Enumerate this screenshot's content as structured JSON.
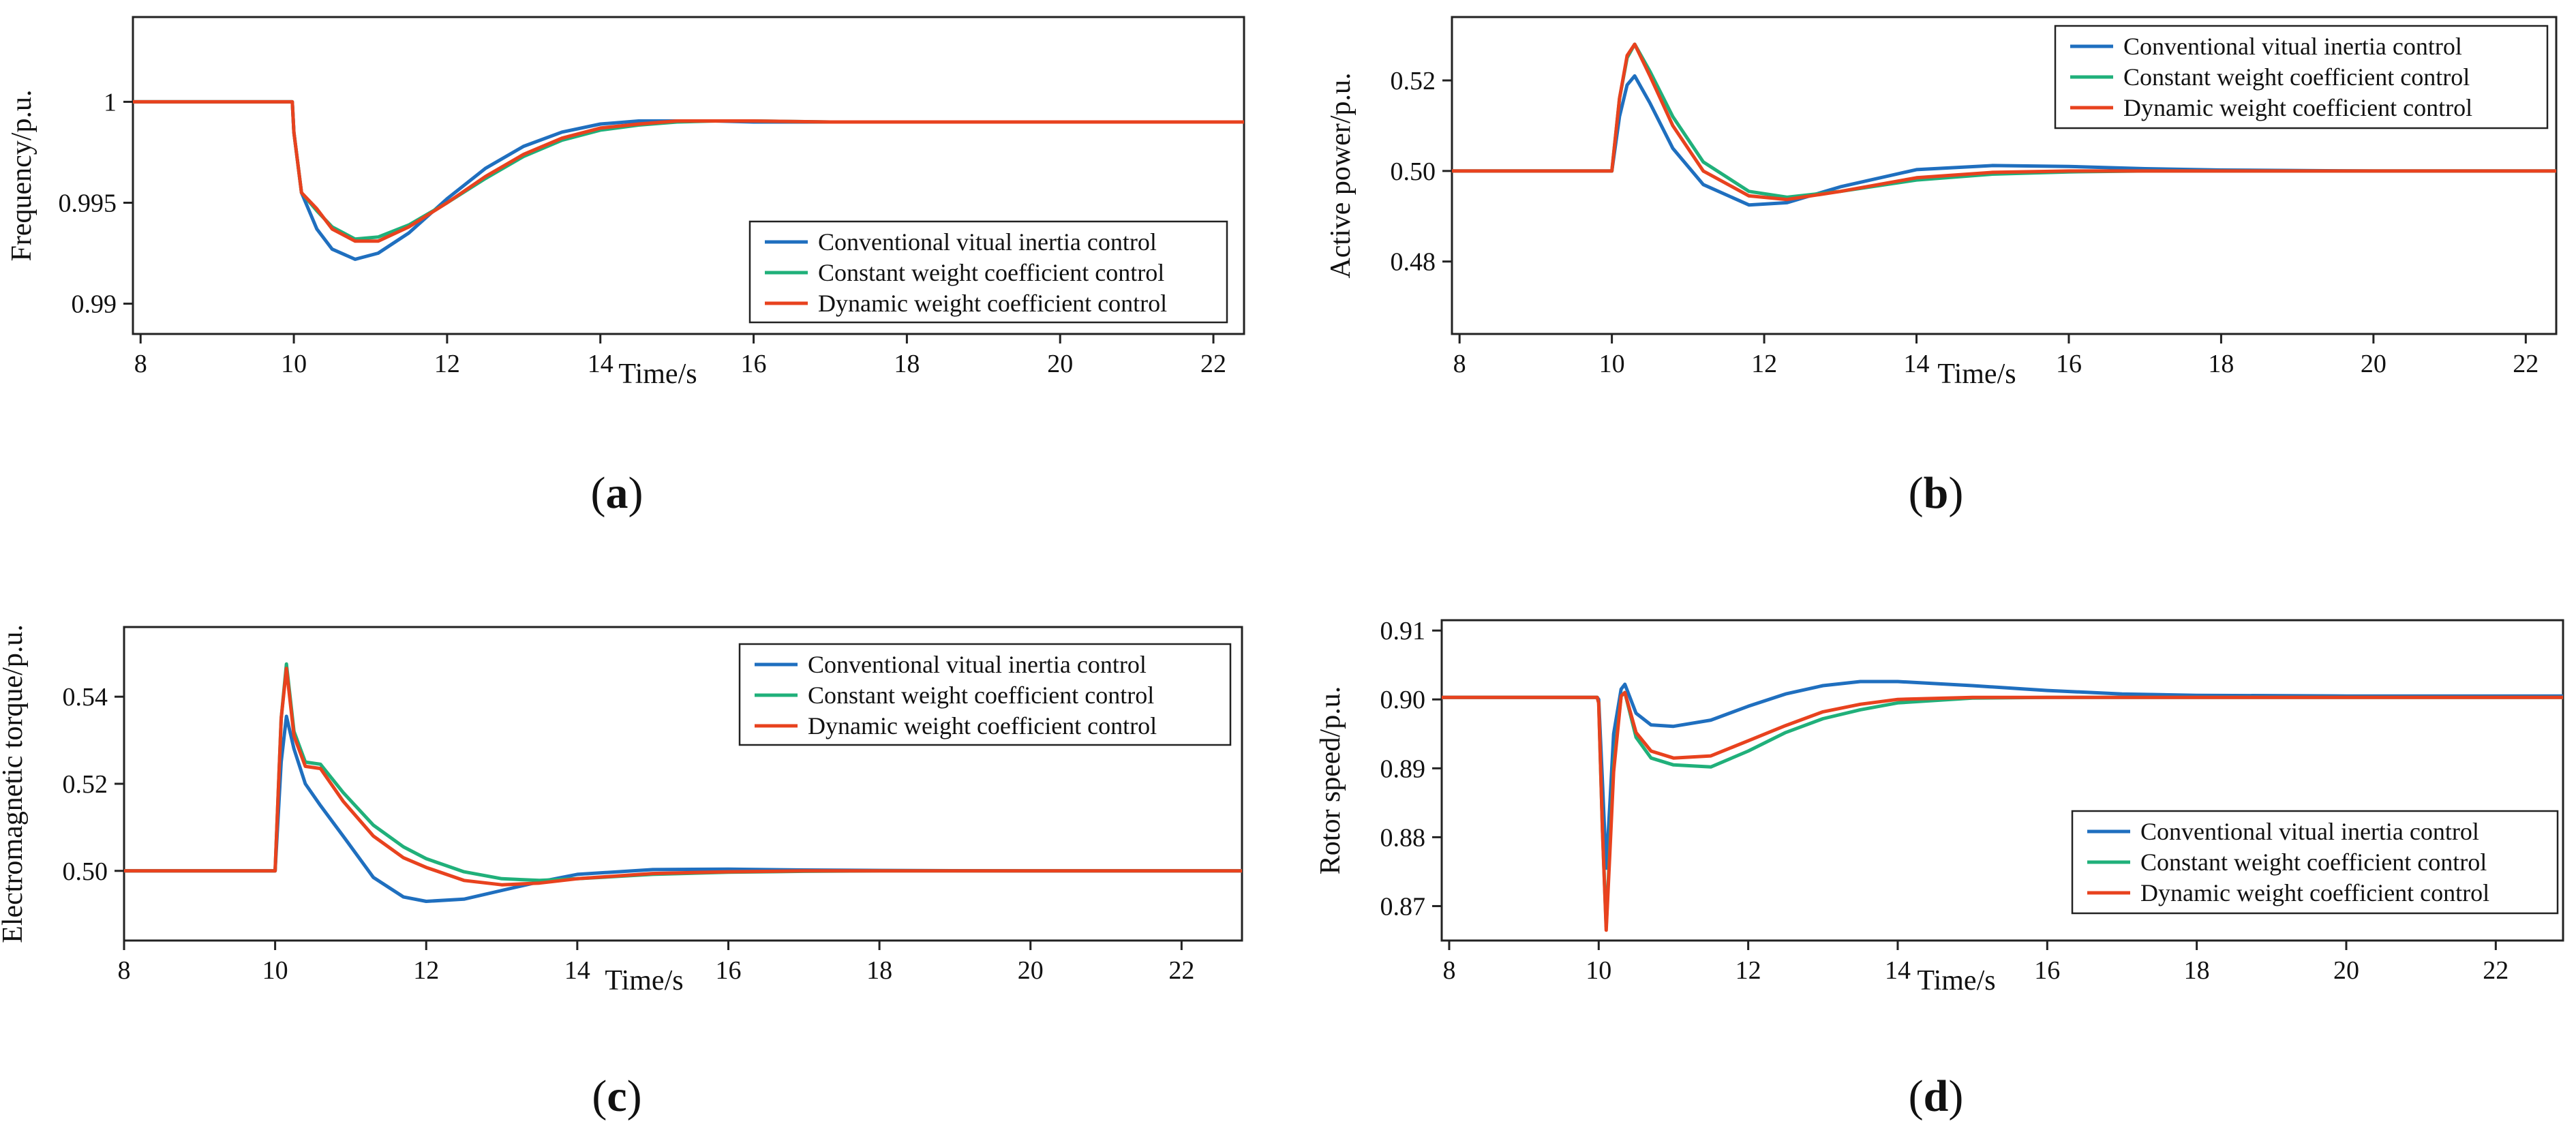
{
  "colors": {
    "conventional": "#1f6fbf",
    "constant": "#20b07a",
    "dynamic": "#e8421e"
  },
  "chart_data": [
    {
      "panel": "a",
      "type": "line",
      "caption": {
        "open": "(",
        "letter": "a",
        "close": ")"
      },
      "xlabel": "Time/s",
      "ylabel": "Frequency/p.u.",
      "xlim": [
        7.9,
        22.4
      ],
      "ylim": [
        0.9885,
        1.0042
      ],
      "xticks": [
        8,
        10,
        12,
        14,
        16,
        18,
        20,
        22
      ],
      "yticks": [
        0.99,
        0.995,
        1
      ],
      "ytick_labels": [
        "0.99",
        "0.995",
        "1"
      ],
      "legend_position": "bottom-right",
      "series": [
        {
          "name": "Conventional vitual inertia control",
          "color_key": "conventional",
          "x": [
            7.9,
            9.98,
            10.0,
            10.1,
            10.3,
            10.5,
            10.8,
            11.1,
            11.5,
            12.0,
            12.5,
            13.0,
            13.5,
            14.0,
            14.5,
            15.0,
            15.5,
            16.0,
            17.0,
            18.0,
            20.0,
            22.4
          ],
          "y": [
            1.0,
            1.0,
            0.9985,
            0.9955,
            0.9937,
            0.9927,
            0.9922,
            0.9925,
            0.9935,
            0.9952,
            0.9967,
            0.9978,
            0.9985,
            0.9989,
            0.99905,
            0.99905,
            0.99905,
            0.999,
            0.999,
            0.999,
            0.999,
            0.999
          ]
        },
        {
          "name": "Constant weight coefficient control",
          "color_key": "constant",
          "x": [
            7.9,
            9.98,
            10.0,
            10.1,
            10.3,
            10.5,
            10.8,
            11.1,
            11.5,
            12.0,
            12.5,
            13.0,
            13.5,
            14.0,
            14.5,
            15.0,
            15.5,
            16.0,
            17.0,
            18.0,
            20.0,
            22.4
          ],
          "y": [
            1.0,
            1.0,
            0.9985,
            0.9955,
            0.9946,
            0.9938,
            0.9932,
            0.9933,
            0.9939,
            0.995,
            0.9962,
            0.9973,
            0.9981,
            0.9986,
            0.99885,
            0.999,
            0.99905,
            0.99905,
            0.999,
            0.999,
            0.999,
            0.999
          ]
        },
        {
          "name": "Dynamic weight coefficient control",
          "color_key": "dynamic",
          "x": [
            7.9,
            9.98,
            10.0,
            10.1,
            10.3,
            10.5,
            10.8,
            11.1,
            11.5,
            12.0,
            12.5,
            13.0,
            13.5,
            14.0,
            14.5,
            15.0,
            15.5,
            16.0,
            17.0,
            18.0,
            20.0,
            22.4
          ],
          "y": [
            1.0,
            1.0,
            0.9985,
            0.9955,
            0.9947,
            0.9937,
            0.9931,
            0.9931,
            0.9938,
            0.995,
            0.9963,
            0.9974,
            0.9982,
            0.9987,
            0.9989,
            0.99905,
            0.99905,
            0.99905,
            0.999,
            0.999,
            0.999,
            0.999
          ]
        }
      ]
    },
    {
      "panel": "b",
      "type": "line",
      "caption": {
        "open": "(",
        "letter": "b",
        "close": ")"
      },
      "xlabel": "Time/s",
      "ylabel": "Active power/p.u.",
      "xlim": [
        7.9,
        22.4
      ],
      "ylim": [
        0.464,
        0.534
      ],
      "xticks": [
        8,
        10,
        12,
        14,
        16,
        18,
        20,
        22
      ],
      "yticks": [
        0.48,
        0.5,
        0.52
      ],
      "ytick_labels": [
        "0.48",
        "0.50",
        "0.52"
      ],
      "legend_position": "top-right",
      "series": [
        {
          "name": "Conventional vitual inertia control",
          "color_key": "conventional",
          "x": [
            7.9,
            9.98,
            10.0,
            10.1,
            10.2,
            10.3,
            10.5,
            10.8,
            11.2,
            11.8,
            12.3,
            13.0,
            14.0,
            15.0,
            16.0,
            17.0,
            18.0,
            20.0,
            22.4
          ],
          "y": [
            0.5,
            0.5,
            0.5,
            0.512,
            0.519,
            0.521,
            0.515,
            0.505,
            0.497,
            0.4925,
            0.493,
            0.4965,
            0.5003,
            0.5012,
            0.501,
            0.5005,
            0.5002,
            0.5,
            0.5
          ]
        },
        {
          "name": "Constant weight coefficient control",
          "color_key": "constant",
          "x": [
            7.9,
            9.98,
            10.0,
            10.1,
            10.2,
            10.3,
            10.5,
            10.8,
            11.2,
            11.8,
            12.3,
            13.0,
            14.0,
            15.0,
            16.0,
            17.0,
            18.0,
            20.0,
            22.4
          ],
          "y": [
            0.5,
            0.5,
            0.5,
            0.516,
            0.525,
            0.528,
            0.522,
            0.512,
            0.502,
            0.4955,
            0.4942,
            0.4955,
            0.498,
            0.4993,
            0.4998,
            0.5,
            0.5,
            0.5,
            0.5
          ]
        },
        {
          "name": "Dynamic weight coefficient control",
          "color_key": "dynamic",
          "x": [
            7.9,
            9.98,
            10.0,
            10.1,
            10.2,
            10.3,
            10.5,
            10.8,
            11.2,
            11.8,
            12.3,
            13.0,
            14.0,
            15.0,
            16.0,
            17.0,
            18.0,
            20.0,
            22.4
          ],
          "y": [
            0.5,
            0.5,
            0.5,
            0.516,
            0.5255,
            0.528,
            0.521,
            0.51,
            0.5,
            0.4945,
            0.4937,
            0.4955,
            0.4985,
            0.4997,
            0.5,
            0.5,
            0.5,
            0.5,
            0.5
          ]
        }
      ]
    },
    {
      "panel": "c",
      "type": "line",
      "caption": {
        "open": "(",
        "letter": "c",
        "close": ")"
      },
      "xlabel": "Time/s",
      "ylabel": "Electromagnetic torque/p.u.",
      "xlim": [
        8.0,
        22.8
      ],
      "ylim": [
        0.484,
        0.556
      ],
      "xticks": [
        8,
        10,
        12,
        14,
        16,
        18,
        20,
        22
      ],
      "yticks": [
        0.5,
        0.52,
        0.54
      ],
      "ytick_labels": [
        "0.50",
        "0.52",
        "0.54"
      ],
      "legend_position": "top-right",
      "series": [
        {
          "name": "Conventional vitual inertia control",
          "color_key": "conventional",
          "x": [
            8.0,
            9.98,
            10.0,
            10.08,
            10.15,
            10.25,
            10.4,
            10.6,
            10.9,
            11.3,
            11.7,
            12.0,
            12.5,
            13.0,
            13.5,
            14.0,
            15.0,
            16.0,
            17.0,
            18.0,
            20.0,
            22.8
          ],
          "y": [
            0.5,
            0.5,
            0.5,
            0.525,
            0.5355,
            0.528,
            0.52,
            0.515,
            0.508,
            0.4985,
            0.494,
            0.493,
            0.4935,
            0.4955,
            0.4975,
            0.4992,
            0.5003,
            0.5004,
            0.5002,
            0.5001,
            0.5,
            0.5
          ]
        },
        {
          "name": "Constant weight coefficient control",
          "color_key": "constant",
          "x": [
            8.0,
            9.98,
            10.0,
            10.08,
            10.15,
            10.25,
            10.4,
            10.6,
            10.9,
            11.3,
            11.7,
            12.0,
            12.5,
            13.0,
            13.5,
            14.0,
            15.0,
            16.0,
            17.0,
            18.0,
            20.0,
            22.8
          ],
          "y": [
            0.5,
            0.5,
            0.5,
            0.535,
            0.5475,
            0.532,
            0.525,
            0.5245,
            0.518,
            0.5105,
            0.5055,
            0.5028,
            0.4998,
            0.4982,
            0.4978,
            0.4982,
            0.4992,
            0.4997,
            0.4999,
            0.5,
            0.5,
            0.5
          ]
        },
        {
          "name": "Dynamic weight coefficient control",
          "color_key": "dynamic",
          "x": [
            8.0,
            9.98,
            10.0,
            10.08,
            10.15,
            10.25,
            10.4,
            10.6,
            10.9,
            11.3,
            11.7,
            12.0,
            12.5,
            13.0,
            13.5,
            14.0,
            15.0,
            16.0,
            17.0,
            18.0,
            20.0,
            22.8
          ],
          "y": [
            0.5,
            0.5,
            0.5,
            0.535,
            0.5465,
            0.531,
            0.524,
            0.5235,
            0.516,
            0.508,
            0.503,
            0.5008,
            0.4978,
            0.4968,
            0.4972,
            0.4982,
            0.4994,
            0.4998,
            0.5,
            0.5,
            0.5,
            0.5
          ]
        }
      ]
    },
    {
      "panel": "d",
      "type": "line",
      "caption": {
        "open": "(",
        "letter": "d",
        "close": ")"
      },
      "xlabel": "Time/s",
      "ylabel": "Rotor speed/p.u.",
      "xlim": [
        7.9,
        22.9
      ],
      "ylim": [
        0.865,
        0.9115
      ],
      "xticks": [
        8,
        10,
        12,
        14,
        16,
        18,
        20,
        22
      ],
      "yticks": [
        0.87,
        0.88,
        0.89,
        0.9,
        0.91
      ],
      "ytick_labels": [
        "0.87",
        "0.88",
        "0.89",
        "0.90",
        "0.91"
      ],
      "legend_position": "bottom-right",
      "series": [
        {
          "name": "Conventional vitual inertia control",
          "color_key": "conventional",
          "x": [
            7.9,
            9.98,
            10.0,
            10.05,
            10.1,
            10.15,
            10.2,
            10.3,
            10.35,
            10.5,
            10.7,
            11.0,
            11.5,
            12.0,
            12.5,
            13.0,
            13.5,
            14.0,
            15.0,
            16.0,
            17.0,
            18.0,
            20.0,
            22.9
          ],
          "y": [
            0.9003,
            0.9003,
            0.9,
            0.888,
            0.8755,
            0.885,
            0.895,
            0.9015,
            0.9022,
            0.898,
            0.8963,
            0.8961,
            0.897,
            0.899,
            0.9008,
            0.902,
            0.9026,
            0.9026,
            0.902,
            0.9013,
            0.9008,
            0.9006,
            0.9005,
            0.9005
          ]
        },
        {
          "name": "Constant weight coefficient control",
          "color_key": "constant",
          "x": [
            7.9,
            9.98,
            10.0,
            10.05,
            10.1,
            10.15,
            10.2,
            10.3,
            10.35,
            10.5,
            10.7,
            11.0,
            11.5,
            12.0,
            12.5,
            13.0,
            13.5,
            14.0,
            15.0,
            16.0,
            17.0,
            18.0,
            20.0,
            22.9
          ],
          "y": [
            0.9003,
            0.9003,
            0.8995,
            0.881,
            0.867,
            0.879,
            0.8905,
            0.9005,
            0.901,
            0.8945,
            0.8915,
            0.8905,
            0.8902,
            0.8925,
            0.8952,
            0.8972,
            0.8985,
            0.8995,
            0.9002,
            0.9003,
            0.9003,
            0.9003,
            0.9003,
            0.9003
          ]
        },
        {
          "name": "Dynamic weight coefficient control",
          "color_key": "dynamic",
          "x": [
            7.9,
            9.98,
            10.0,
            10.05,
            10.1,
            10.15,
            10.2,
            10.3,
            10.35,
            10.5,
            10.7,
            11.0,
            11.5,
            12.0,
            12.5,
            13.0,
            13.5,
            14.0,
            15.0,
            16.0,
            17.0,
            18.0,
            20.0,
            22.9
          ],
          "y": [
            0.9003,
            0.9003,
            0.8995,
            0.881,
            0.8665,
            0.878,
            0.8895,
            0.9005,
            0.901,
            0.8952,
            0.8925,
            0.8915,
            0.8918,
            0.894,
            0.8962,
            0.8982,
            0.8993,
            0.9,
            0.9003,
            0.9003,
            0.9003,
            0.9003,
            0.9003,
            0.9003
          ]
        }
      ]
    }
  ]
}
